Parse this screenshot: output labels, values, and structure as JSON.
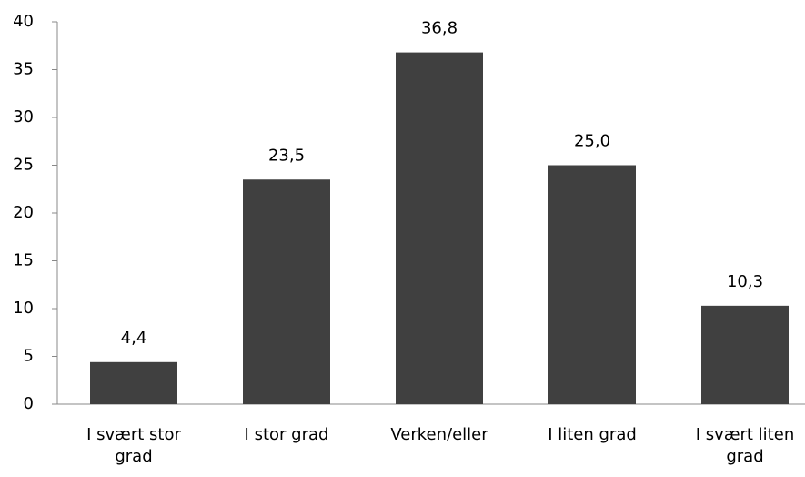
{
  "chart_data": {
    "type": "bar",
    "categories": [
      "I svært stor grad",
      "I stor grad",
      "Verken/eller",
      "I liten grad",
      "I svært liten grad"
    ],
    "values": [
      4.4,
      23.5,
      36.8,
      25.0,
      10.3
    ],
    "value_labels": [
      "4,4",
      "23,5",
      "36,8",
      "25,0",
      "10,3"
    ],
    "color": "#404040",
    "ylim": [
      0,
      40
    ],
    "yticks": [
      0,
      5,
      10,
      15,
      20,
      25,
      30,
      35,
      40
    ],
    "grid": false
  }
}
